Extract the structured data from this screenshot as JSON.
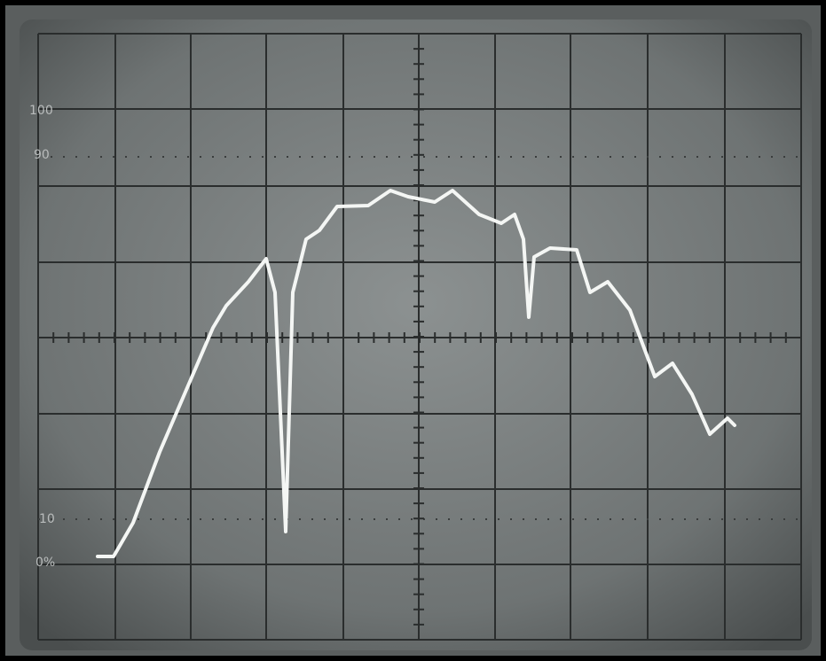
{
  "graticule_labels": [
    "100",
    "90",
    "10",
    "0%"
  ]
}
